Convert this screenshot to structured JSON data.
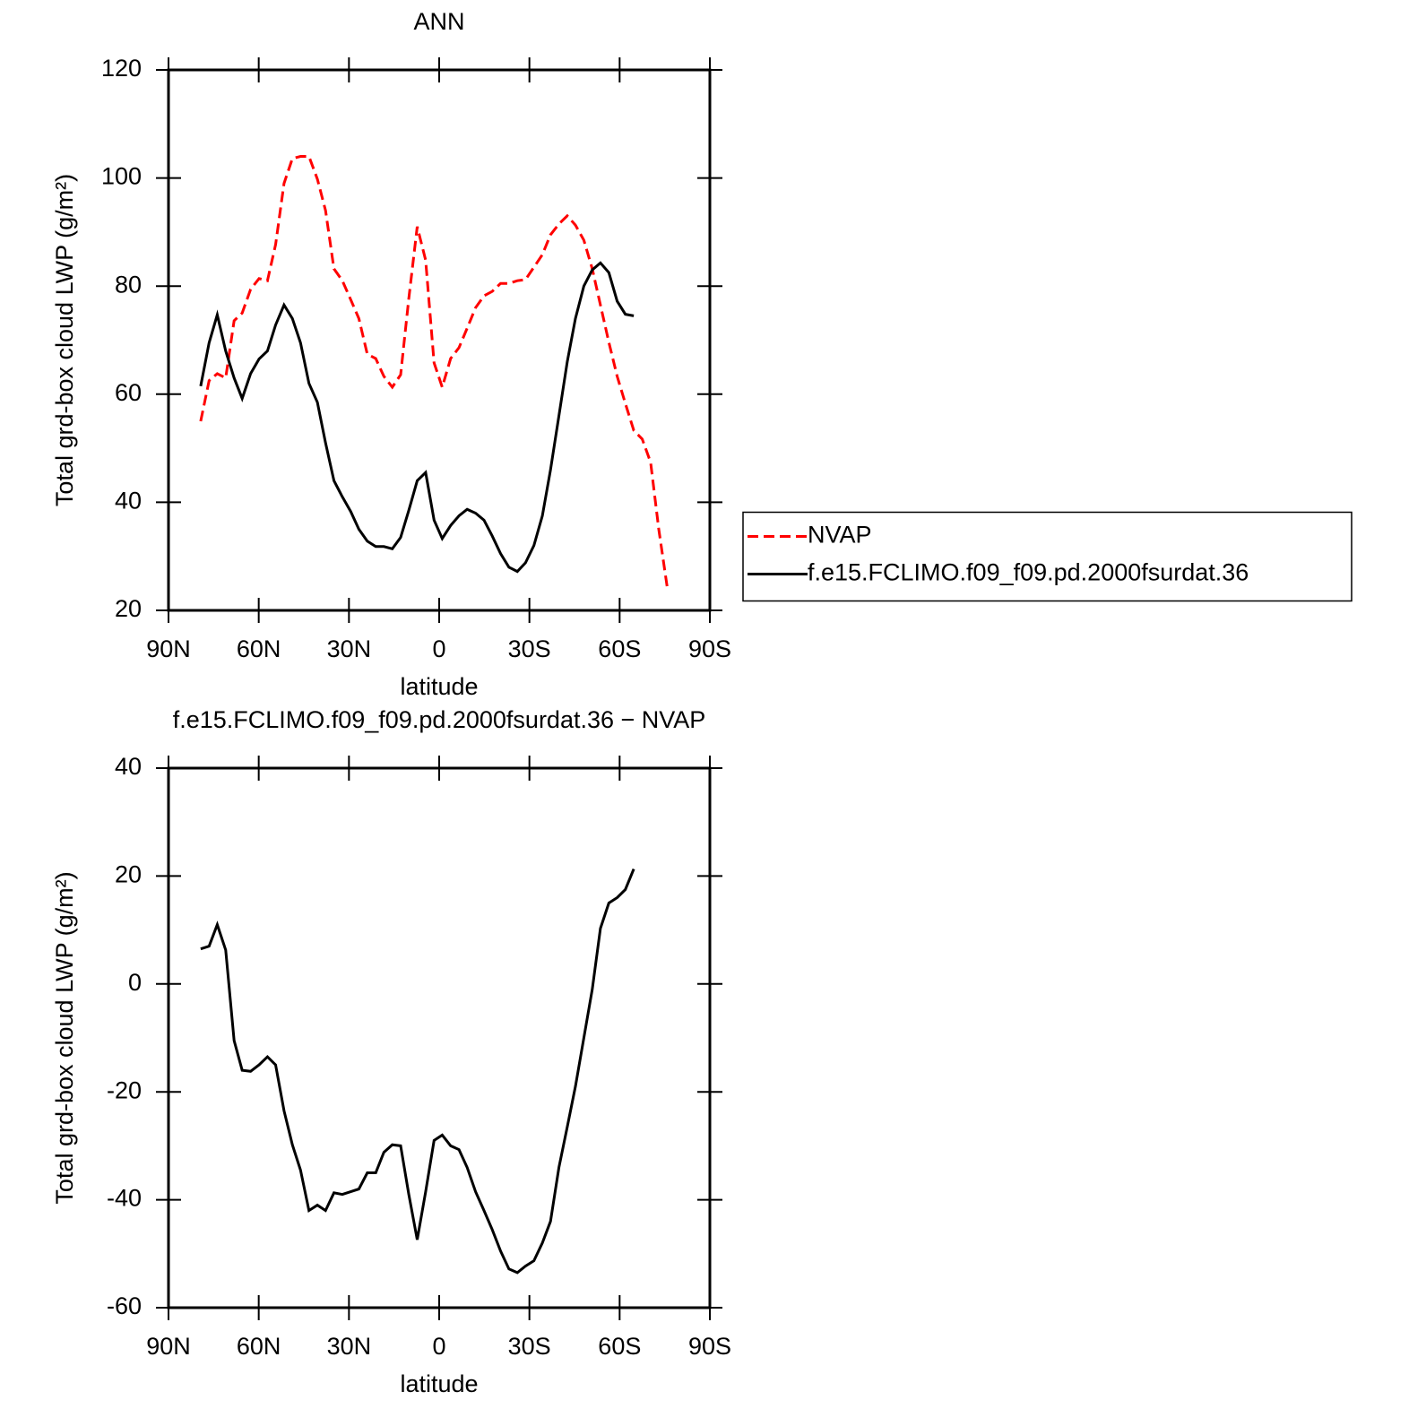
{
  "chart_data": [
    {
      "type": "line",
      "title": "ANN",
      "xlabel": "latitude",
      "ylabel": "Total grd-box cloud LWP (g/m²)",
      "x": [
        79.3,
        76.5,
        73.8,
        71.0,
        68.2,
        65.5,
        62.7,
        59.9,
        57.1,
        54.4,
        51.6,
        48.8,
        46.1,
        43.3,
        40.5,
        37.8,
        35.0,
        32.2,
        29.4,
        26.7,
        23.9,
        21.1,
        18.4,
        15.6,
        12.8,
        10.1,
        7.3,
        4.5,
        1.7,
        -1.0,
        -3.8,
        -6.6,
        -9.3,
        -12.1,
        -14.9,
        -17.6,
        -20.4,
        -23.2,
        -26.0,
        -28.7,
        -31.5,
        -34.3,
        -37.0,
        -39.8,
        -42.6,
        -45.3,
        -48.1,
        -50.9,
        -53.6,
        -56.4,
        -59.2,
        -61.9,
        -64.7,
        -67.5,
        -70.3,
        -73.0,
        -75.8
      ],
      "series": [
        {
          "name": "NVAP",
          "color": "#ff0000",
          "linestyle": "dashed",
          "values": [
            55,
            62.5,
            63.8,
            63,
            73.6,
            75,
            79.4,
            81.4,
            81,
            87.7,
            99,
            103.6,
            104,
            104,
            99.8,
            94,
            83.2,
            81,
            77.5,
            74,
            67.4,
            66.6,
            63.3,
            61.3,
            63.6,
            77.7,
            91,
            84.8,
            65.8,
            61.3,
            66.6,
            68.6,
            72.2,
            76,
            78.2,
            79,
            80.5,
            80.5,
            81,
            81.2,
            83.5,
            85.8,
            89.5,
            91.5,
            93,
            91.3,
            88.5,
            83.2,
            76.5,
            69.6,
            63.3,
            58.3,
            53.3,
            51.7,
            47.4,
            35,
            24.3
          ]
        },
        {
          "name": "f.e15.FCLIMO.f09_f09.pd.2000fsurdat.36",
          "color": "#000000",
          "linestyle": "solid",
          "values": [
            61.5,
            69.5,
            74.7,
            68,
            63,
            59.2,
            63.8,
            66.5,
            68,
            72.8,
            76.5,
            74,
            69.5,
            62,
            58.5,
            51,
            44,
            41,
            38.3,
            35,
            32.8,
            31.8,
            31.8,
            31.4,
            33.5,
            38.5,
            44,
            45.5,
            36.7,
            33.3,
            35.7,
            37.5,
            38.7,
            38,
            36.7,
            33.8,
            30.5,
            28,
            27.2,
            28.8,
            32,
            37.5,
            46,
            56,
            66,
            74,
            80,
            83,
            84.3,
            82.5,
            77.2,
            74.8,
            74.5,
            null,
            null,
            null,
            null
          ]
        }
      ],
      "xlim": [
        90,
        -90
      ],
      "xticks": [
        {
          "value": 90,
          "label": "90N"
        },
        {
          "value": 60,
          "label": "60N"
        },
        {
          "value": 30,
          "label": "30N"
        },
        0,
        {
          "value": -30,
          "label": "30S"
        },
        {
          "value": -60,
          "label": "60S"
        },
        {
          "value": -90,
          "label": "90S"
        }
      ],
      "ylim": [
        20,
        120
      ],
      "yticks": [
        20,
        40,
        60,
        80,
        100,
        120
      ],
      "legend": "right"
    },
    {
      "type": "line",
      "title": "f.e15.FCLIMO.f09_f09.pd.2000fsurdat.36 − NVAP",
      "xlabel": "latitude",
      "ylabel": "Total grd-box cloud LWP (g/m²)",
      "x": [
        79.3,
        76.5,
        73.8,
        71.0,
        68.2,
        65.5,
        62.7,
        59.9,
        57.1,
        54.4,
        51.6,
        48.8,
        46.1,
        43.3,
        40.5,
        37.8,
        35.0,
        32.2,
        29.4,
        26.7,
        23.9,
        21.1,
        18.4,
        15.6,
        12.8,
        10.1,
        7.3,
        4.5,
        1.7,
        -1.0,
        -3.8,
        -6.6,
        -9.3,
        -12.1,
        -14.9,
        -17.6,
        -20.4,
        -23.2,
        -26.0,
        -28.7,
        -31.5,
        -34.3,
        -37.0,
        -39.8,
        -42.6,
        -45.3,
        -48.1,
        -50.9,
        -53.6,
        -56.4,
        -59.2,
        -61.9,
        -64.7
      ],
      "series": [
        {
          "color": "#000000",
          "linestyle": "solid",
          "values": [
            6.5,
            7,
            11,
            6.3,
            -10.5,
            -16,
            -16.2,
            -15,
            -13.5,
            -15,
            -23.5,
            -29.8,
            -34.5,
            -42,
            -41,
            -42,
            -38.7,
            -39,
            -38.5,
            -38,
            -35,
            -35,
            -31.2,
            -29.8,
            -30,
            -39,
            -47.4,
            -38.5,
            -29,
            -28,
            -30,
            -30.7,
            -34,
            -38.5,
            -42,
            -45.5,
            -49.5,
            -52.8,
            -53.5,
            -52.3,
            -51.3,
            -48,
            -44,
            -34,
            -26.5,
            -19,
            -10,
            -1,
            10.3,
            15,
            16,
            17.5,
            21.3
          ]
        }
      ],
      "xlim": [
        90,
        -90
      ],
      "xticks": [
        {
          "value": 90,
          "label": "90N"
        },
        {
          "value": 60,
          "label": "60N"
        },
        {
          "value": 30,
          "label": "30N"
        },
        0,
        {
          "value": -30,
          "label": "30S"
        },
        {
          "value": -60,
          "label": "60S"
        },
        {
          "value": -90,
          "label": "90S"
        }
      ],
      "ylim": [
        -60,
        40
      ],
      "yticks": [
        -60,
        -40,
        -20,
        0,
        20,
        40
      ]
    }
  ]
}
